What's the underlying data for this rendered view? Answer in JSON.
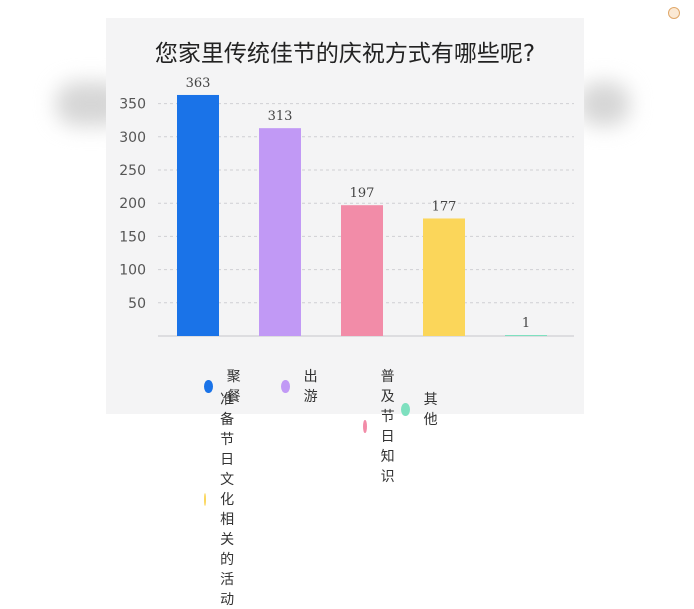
{
  "chart_data": {
    "type": "bar",
    "title": "您家里传统佳节的庆祝方式有哪些呢?",
    "categories": [
      "聚餐",
      "出游",
      "普及节日知识",
      "准备节日文化相关的活动",
      "其他"
    ],
    "values": [
      363,
      313,
      197,
      177,
      1
    ],
    "colors": [
      "#1a73e8",
      "#c199f5",
      "#f28ca8",
      "#fbd65a",
      "#7ee0bf"
    ],
    "ylim": [
      0,
      370
    ],
    "yticks": [
      50,
      100,
      150,
      200,
      250,
      300,
      350
    ],
    "grid": true,
    "legend_position": "bottom"
  }
}
